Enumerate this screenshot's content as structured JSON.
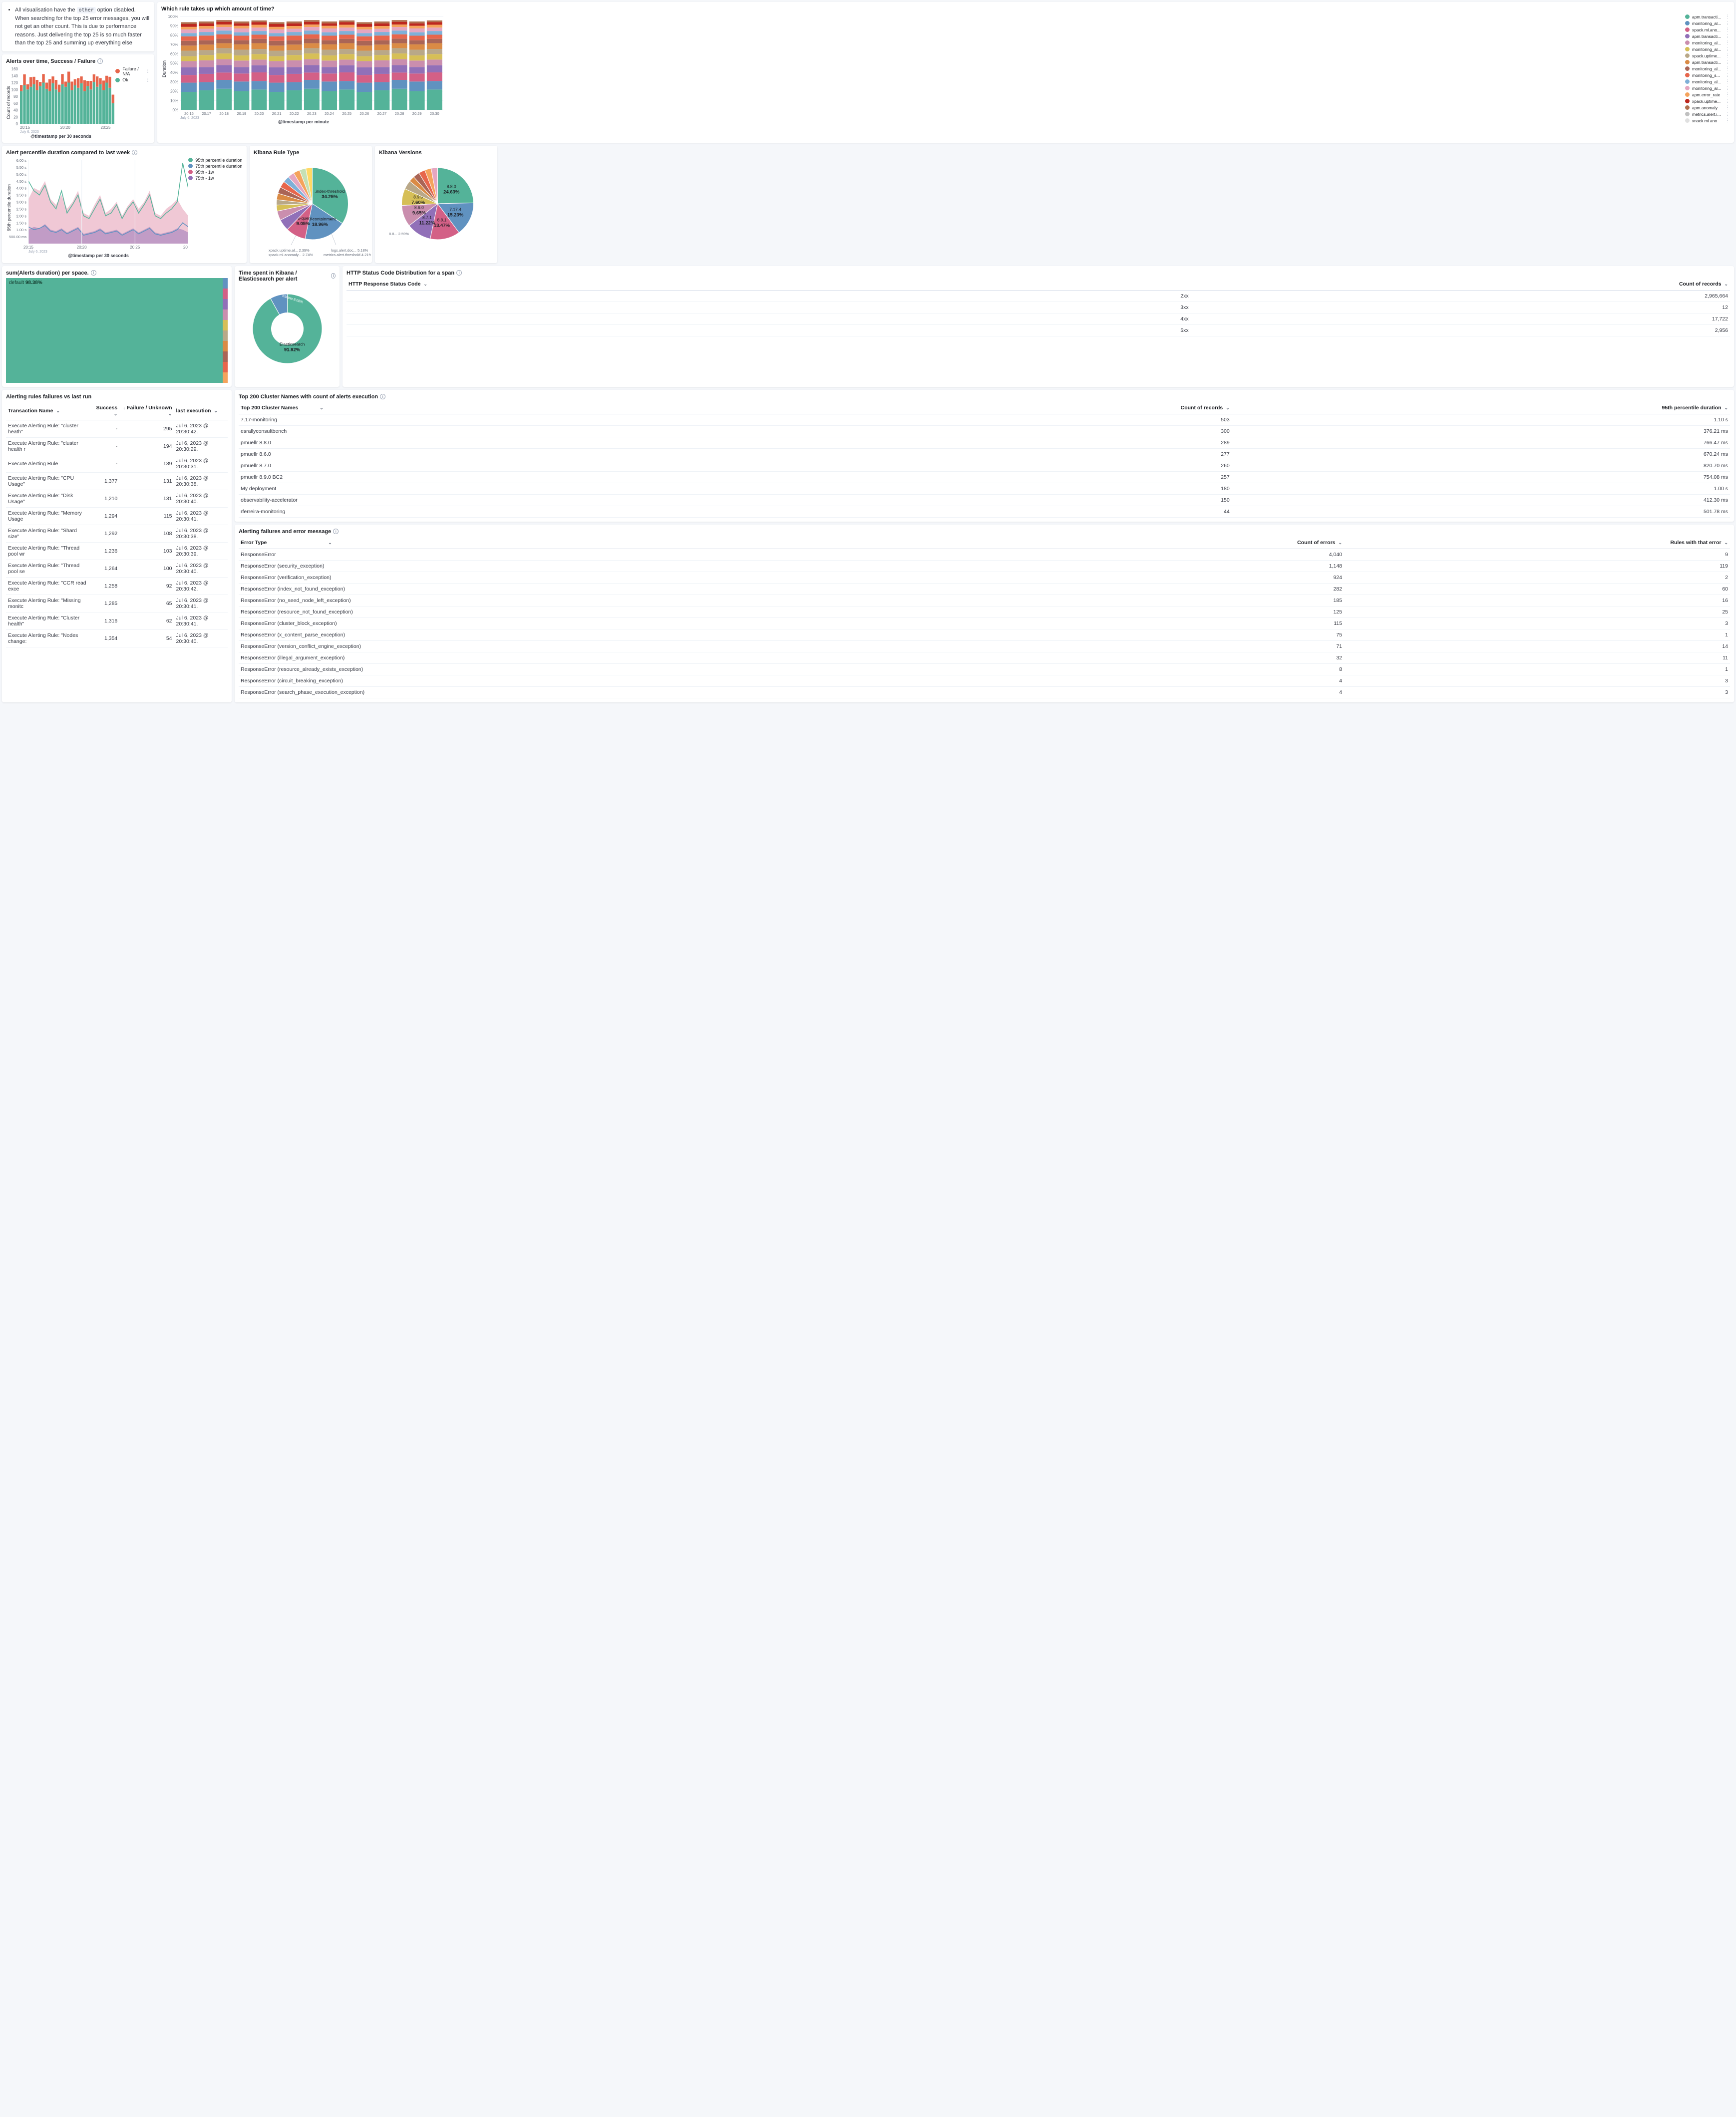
{
  "note": {
    "text_parts": [
      "All visualisation have the ",
      " option disabled. When searching for the top 25 error messages, you will not get an other count. This is due to performance reasons. Just delivering the top 25 is so much faster than the top 25 and summing up everything else"
    ],
    "code": "other"
  },
  "alerts_over_time": {
    "title": "Alerts over time, Success / Failure",
    "x_label": "@timestamp per 30 seconds",
    "y_label": "Count of records",
    "x_ticks": [
      "20:15",
      "20:20",
      "20:25"
    ],
    "x_sublabel": "July 6, 2023",
    "y_ticks": [
      0,
      20,
      40,
      60,
      80,
      100,
      120,
      140,
      160
    ],
    "legend": [
      {
        "label": "Failure / N/A",
        "color": "#e7664c"
      },
      {
        "label": "Ok",
        "color": "#54b399"
      }
    ],
    "bars": [
      {
        "ok": 95,
        "fail": 18
      },
      {
        "ok": 112,
        "fail": 32
      },
      {
        "ok": 100,
        "fail": 15
      },
      {
        "ok": 108,
        "fail": 28
      },
      {
        "ok": 115,
        "fail": 22
      },
      {
        "ok": 98,
        "fail": 30
      },
      {
        "ok": 110,
        "fail": 12
      },
      {
        "ok": 120,
        "fail": 25
      },
      {
        "ok": 102,
        "fail": 18
      },
      {
        "ok": 95,
        "fail": 35
      },
      {
        "ok": 118,
        "fail": 20
      },
      {
        "ok": 100,
        "fail": 28
      },
      {
        "ok": 92,
        "fail": 22
      },
      {
        "ok": 115,
        "fail": 30
      },
      {
        "ok": 108,
        "fail": 15
      },
      {
        "ok": 120,
        "fail": 32
      },
      {
        "ok": 98,
        "fail": 25
      },
      {
        "ok": 112,
        "fail": 18
      },
      {
        "ok": 105,
        "fail": 28
      },
      {
        "ok": 118,
        "fail": 20
      },
      {
        "ok": 95,
        "fail": 32
      },
      {
        "ok": 110,
        "fail": 15
      },
      {
        "ok": 100,
        "fail": 25
      },
      {
        "ok": 122,
        "fail": 22
      },
      {
        "ok": 108,
        "fail": 30
      },
      {
        "ok": 115,
        "fail": 18
      },
      {
        "ok": 98,
        "fail": 28
      },
      {
        "ok": 120,
        "fail": 20
      },
      {
        "ok": 105,
        "fail": 32
      },
      {
        "ok": 60,
        "fail": 25
      }
    ]
  },
  "rule_time": {
    "title": "Which rule takes up which amount of time?",
    "y_label": "Duration",
    "x_label": "@timestamp per minute",
    "y_ticks": [
      "0%",
      "10%",
      "20%",
      "30%",
      "40%",
      "50%",
      "60%",
      "70%",
      "80%",
      "90%",
      "100%"
    ],
    "x_ticks": [
      "20:16",
      "20:17",
      "20:18",
      "20:19",
      "20:20",
      "20:21",
      "20:22",
      "20:23",
      "20:24",
      "20:25",
      "20:26",
      "20:27",
      "20:28",
      "20:29",
      "20:30"
    ],
    "x_sublabel": "July 6, 2023",
    "legend": [
      {
        "label": "apm.transacti...",
        "color": "#54b399"
      },
      {
        "label": "monitoring_al...",
        "color": "#6092c0"
      },
      {
        "label": "xpack.ml.ano...",
        "color": "#d36086"
      },
      {
        "label": "apm.transacti...",
        "color": "#9170b8"
      },
      {
        "label": "monitoring_al...",
        "color": "#ca8eae"
      },
      {
        "label": "monitoring_al...",
        "color": "#d6bf57"
      },
      {
        "label": "xpack.uptime...",
        "color": "#b9a888"
      },
      {
        "label": "apm.transacti...",
        "color": "#da8b45"
      },
      {
        "label": "monitoring_al...",
        "color": "#aa6556"
      },
      {
        "label": "monitoring_s...",
        "color": "#e7664c"
      },
      {
        "label": "monitoring_al...",
        "color": "#7fb0d8"
      },
      {
        "label": "monitoring_al...",
        "color": "#e5a6c0"
      },
      {
        "label": "apm.error_rate",
        "color": "#f5a35c"
      },
      {
        "label": "xpack.uptime...",
        "color": "#bd271e"
      },
      {
        "label": "apm.anomaly",
        "color": "#b0704f"
      },
      {
        "label": "metrics.alert.i...",
        "color": "#c0c0c0"
      },
      {
        "label": "xnack ml ano",
        "color": "#e0e0e0"
      }
    ],
    "stack": [
      22,
      10,
      9,
      8,
      7,
      6,
      6,
      6,
      5,
      5,
      4,
      4,
      3,
      3,
      2
    ]
  },
  "percentile": {
    "title": "Alert percentile duration compared to last week",
    "y_label": "95th percentile duration",
    "x_label": "@timestamp per 30 seconds",
    "x_ticks": [
      "20:15",
      "20:20",
      "20:25",
      "20:30"
    ],
    "x_sublabel": "July 6, 2023",
    "y_ticks": [
      "500.00 ms",
      "1.00 s",
      "1.50 s",
      "2.00 s",
      "2.50 s",
      "3.00 s",
      "3.50 s",
      "4.00 s",
      "4.50 s",
      "5.00 s",
      "5.50 s",
      "6.00 s"
    ],
    "legend": [
      {
        "label": "95th percentile duration",
        "color": "#54b399"
      },
      {
        "label": "75th percentile duration",
        "color": "#6092c0"
      },
      {
        "label": "95th - 1w",
        "color": "#d36086"
      },
      {
        "label": "75th - 1w",
        "color": "#9170b8"
      }
    ],
    "series_95": [
      4.5,
      3.8,
      3.5,
      4.2,
      3.0,
      2.5,
      3.8,
      2.2,
      2.8,
      3.5,
      2.0,
      1.8,
      2.5,
      3.2,
      2.0,
      2.2,
      2.8,
      1.8,
      2.5,
      3.0,
      2.2,
      2.8,
      3.5,
      2.0,
      1.8,
      2.2,
      2.5,
      3.0,
      5.8,
      4.0
    ],
    "series_75": [
      1.2,
      1.0,
      1.1,
      1.3,
      0.9,
      0.8,
      1.0,
      0.7,
      0.9,
      1.1,
      0.6,
      0.7,
      0.8,
      1.0,
      0.7,
      0.8,
      0.9,
      0.6,
      0.8,
      1.0,
      0.7,
      0.9,
      1.1,
      0.7,
      0.6,
      0.7,
      0.8,
      1.0,
      1.5,
      1.2
    ],
    "area_95w": [
      3.2,
      4.0,
      3.8,
      4.5,
      3.2,
      2.8,
      3.5,
      2.5,
      3.0,
      3.8,
      2.2,
      2.0,
      2.8,
      3.5,
      2.2,
      2.5,
      3.0,
      2.0,
      2.7,
      3.2,
      2.5,
      3.0,
      3.8,
      2.2,
      2.0,
      2.5,
      2.8,
      3.2,
      2.5,
      2.0
    ],
    "area_75w": [
      1.0,
      1.2,
      1.1,
      1.4,
      1.0,
      0.9,
      1.1,
      0.8,
      1.0,
      1.2,
      0.7,
      0.8,
      0.9,
      1.1,
      0.8,
      0.9,
      1.0,
      0.7,
      0.9,
      1.1,
      0.8,
      1.0,
      1.2,
      0.8,
      0.7,
      0.8,
      0.9,
      1.1,
      1.0,
      0.8
    ]
  },
  "rule_type_pie": {
    "title": "Kibana Rule Type",
    "slices": [
      {
        "label": ".index-threshold",
        "pct": 34.25,
        "color": "#54b399"
      },
      {
        "label": "geo-containment",
        "pct": 18.96,
        "color": "#6092c0"
      },
      {
        "label": ".es-query",
        "pct": 9.05,
        "color": "#d36086"
      },
      {
        "label": "logs.alert.doc...",
        "pct": 5.18,
        "color": "#9170b8"
      },
      {
        "label": "metrics.alert.threshold",
        "pct": 4.21,
        "color": "#ca8eae"
      },
      {
        "label": "xpack.ml.anomaly...",
        "pct": 2.74,
        "color": "#d6bf57"
      },
      {
        "label": "xpack.uptime.al...",
        "pct": 2.39,
        "color": "#b9a888"
      }
    ],
    "other_colors": [
      "#da8b45",
      "#aa6556",
      "#e7664c",
      "#7fb0d8",
      "#e5a6c0",
      "#f5a35c",
      "#c5e0b4",
      "#ffd966"
    ]
  },
  "versions_pie": {
    "title": "Kibana Versions",
    "slices": [
      {
        "label": "8.8.0",
        "pct": 24.63,
        "color": "#54b399"
      },
      {
        "label": "7.17.4",
        "pct": 15.23,
        "color": "#6092c0"
      },
      {
        "label": "8.8.1",
        "pct": 13.47,
        "color": "#d36086"
      },
      {
        "label": "8.7.1",
        "pct": 11.22,
        "color": "#9170b8"
      },
      {
        "label": "8.6.0",
        "pct": 9.65,
        "color": "#ca8eae"
      },
      {
        "label": "8.9.0",
        "pct": 7.6,
        "color": "#d6bf57"
      },
      {
        "label": "7.17.1",
        "pct": 4.0,
        "color": "#b9a888"
      },
      {
        "label": "8.8...",
        "pct": 2.59,
        "color": "#da8b45"
      }
    ],
    "other_colors": [
      "#aa6556",
      "#e7664c",
      "#f5a35c",
      "#e5a6c0"
    ]
  },
  "treemap": {
    "title": "sum(Alerts duration) per space.",
    "main_label": "default",
    "main_pct": "98.38%",
    "main_color": "#54b399",
    "side_colors": [
      "#6092c0",
      "#d36086",
      "#9170b8",
      "#ca8eae",
      "#d6bf57",
      "#b9a888",
      "#da8b45",
      "#aa6556",
      "#e7664c",
      "#f5a35c"
    ]
  },
  "donut": {
    "title": "Time spent in Kibana / Elasticsearch per alert",
    "slices": [
      {
        "label": "Elasticsearch",
        "pct": 91.92,
        "color": "#54b399"
      },
      {
        "label": "Kibana",
        "pct": 8.08,
        "color": "#6092c0"
      }
    ]
  },
  "http_status": {
    "title": "HTTP Status Code Distribution for a span",
    "columns": [
      "HTTP Response Status Code",
      "Count of records"
    ],
    "rows": [
      [
        "2xx",
        "2,965,664"
      ],
      [
        "3xx",
        "12"
      ],
      [
        "4xx",
        "17,722"
      ],
      [
        "5xx",
        "2,956"
      ]
    ]
  },
  "cluster_table": {
    "title": "Top 200 Cluster Names with count of alerts execution",
    "columns": [
      "Top 200 Cluster Names",
      "Count of records",
      "95th percentile duration"
    ],
    "rows": [
      [
        "7.17-monitoring",
        "503",
        "1.10 s"
      ],
      [
        "esrallyconsultbench",
        "300",
        "376.21 ms"
      ],
      [
        "pmuellr 8.8.0",
        "289",
        "766.47 ms"
      ],
      [
        "pmuellr 8.6.0",
        "277",
        "670.24 ms"
      ],
      [
        "pmuellr 8.7.0",
        "260",
        "820.70 ms"
      ],
      [
        "pmuellr 8.9.0 BC2",
        "257",
        "754.08 ms"
      ],
      [
        "My deployment",
        "180",
        "1.00 s"
      ],
      [
        "observability-accelerator",
        "150",
        "412.30 ms"
      ],
      [
        "rferreira-monitoring",
        "44",
        "501.78 ms"
      ]
    ]
  },
  "rules_failures": {
    "title": "Alerting rules failures vs last run",
    "columns": [
      "Transaction Name",
      "Success",
      "Failure / Unknown",
      "last execution"
    ],
    "rows": [
      [
        "Execute Alerting Rule: \"cluster heath\"",
        "-",
        "295",
        "Jul 6, 2023 @ 20:30:42."
      ],
      [
        "Execute Alerting Rule: \"cluster health r",
        "-",
        "194",
        "Jul 6, 2023 @ 20:30:29."
      ],
      [
        "Execute Alerting Rule",
        "-",
        "139",
        "Jul 6, 2023 @ 20:30:31."
      ],
      [
        "Execute Alerting Rule: \"CPU Usage\"",
        "1,377",
        "131",
        "Jul 6, 2023 @ 20:30:38."
      ],
      [
        "Execute Alerting Rule: \"Disk Usage\"",
        "1,210",
        "131",
        "Jul 6, 2023 @ 20:30:40."
      ],
      [
        "Execute Alerting Rule: \"Memory Usage",
        "1,294",
        "115",
        "Jul 6, 2023 @ 20:30:41."
      ],
      [
        "Execute Alerting Rule: \"Shard size\"",
        "1,292",
        "108",
        "Jul 6, 2023 @ 20:30:38."
      ],
      [
        "Execute Alerting Rule: \"Thread pool wr",
        "1,236",
        "103",
        "Jul 6, 2023 @ 20:30:39."
      ],
      [
        "Execute Alerting Rule: \"Thread pool se",
        "1,264",
        "100",
        "Jul 6, 2023 @ 20:30:40."
      ],
      [
        "Execute Alerting Rule: \"CCR read exce",
        "1,258",
        "92",
        "Jul 6, 2023 @ 20:30:42."
      ],
      [
        "Execute Alerting Rule: \"Missing monitc",
        "1,285",
        "65",
        "Jul 6, 2023 @ 20:30:41."
      ],
      [
        "Execute Alerting Rule: \"Cluster health\"",
        "1,316",
        "62",
        "Jul 6, 2023 @ 20:30:41."
      ],
      [
        "Execute Alerting Rule: \"Nodes change:",
        "1,354",
        "54",
        "Jul 6, 2023 @ 20:30:40."
      ]
    ]
  },
  "error_table": {
    "title": "Alerting failures and error message",
    "columns": [
      "Error Type",
      "Count of errors",
      "Rules with that error"
    ],
    "rows": [
      [
        "ResponseError",
        "4,040",
        "9"
      ],
      [
        "ResponseError (security_exception)",
        "1,148",
        "119"
      ],
      [
        "ResponseError (verification_exception)",
        "924",
        "2"
      ],
      [
        "ResponseError (index_not_found_exception)",
        "282",
        "60"
      ],
      [
        "ResponseError (no_seed_node_left_exception)",
        "185",
        "16"
      ],
      [
        "ResponseError (resource_not_found_exception)",
        "125",
        "25"
      ],
      [
        "ResponseError (cluster_block_exception)",
        "115",
        "3"
      ],
      [
        "ResponseError (x_content_parse_exception)",
        "75",
        "1"
      ],
      [
        "ResponseError (version_conflict_engine_exception)",
        "71",
        "14"
      ],
      [
        "ResponseError (illegal_argument_exception)",
        "32",
        "11"
      ],
      [
        "ResponseError (resource_already_exists_exception)",
        "8",
        "1"
      ],
      [
        "ResponseError (circuit_breaking_exception)",
        "4",
        "3"
      ],
      [
        "ResponseError (search_phase_execution_exception)",
        "4",
        "3"
      ]
    ]
  }
}
